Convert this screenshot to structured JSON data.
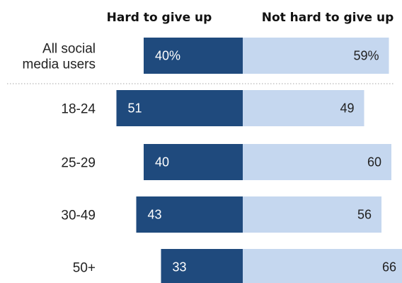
{
  "chart_data": {
    "type": "bar",
    "orientation": "diverging-horizontal",
    "series": [
      {
        "name": "Hard to give up",
        "color": "#1f4a7d",
        "values": [
          40,
          51,
          40,
          43,
          33
        ],
        "labels": [
          "40%",
          "51",
          "40",
          "43",
          "33"
        ]
      },
      {
        "name": "Not hard to give up",
        "color": "#c5d7ef",
        "values": [
          59,
          49,
          60,
          56,
          66
        ],
        "labels": [
          "59%",
          "49",
          "60",
          "56",
          "66"
        ]
      }
    ],
    "categories": [
      {
        "lines": [
          "All social",
          "media users"
        ]
      },
      {
        "lines": [
          "18-24"
        ]
      },
      {
        "lines": [
          "25-29"
        ]
      },
      {
        "lines": [
          "30-49"
        ]
      },
      {
        "lines": [
          "50+"
        ]
      }
    ],
    "grid": false,
    "legend": "top",
    "divider_after_first": true
  }
}
